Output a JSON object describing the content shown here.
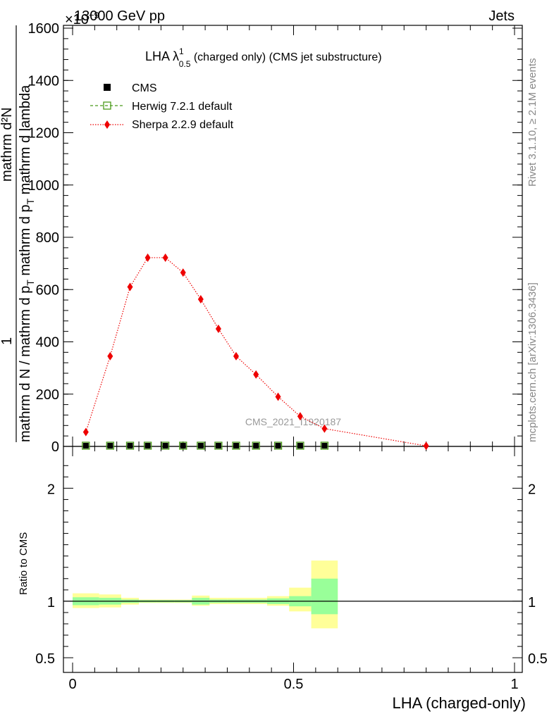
{
  "header": {
    "energy": "13000 GeV pp",
    "process": "Jets",
    "exponent": "×10",
    "exponent_power": "−9"
  },
  "side_labels": {
    "rivet": "Rivet 3.1.10, ≥ 2.1M events",
    "mcplots": "mcplots.cern.ch [arXiv:1306.3436]"
  },
  "main_title": {
    "prefix": "LHA λ",
    "superscript": "1",
    "subscript": "0.5",
    "suffix": " (charged only) (CMS jet substructure)"
  },
  "watermark": "CMS_2021_I1920187",
  "ylabel": {
    "numerator": "1",
    "line1": "mathrm d N / mathrm d p",
    "line1_sub": "T",
    "line1_suffix": " mathrm d p",
    "line1_sub2": "T",
    "line1_tail": " mathrm d lambda",
    "denominator_main": "mathrm d²N",
    "denominator_tail": "mathrm d N"
  },
  "ratio_ylabel": "Ratio to CMS",
  "xlabel": "LHA (charged-only)",
  "legend": [
    {
      "name": "CMS",
      "color": "#000000",
      "marker": "square-filled"
    },
    {
      "name": "Herwig 7.2.1 default",
      "color": "#4a9a1a",
      "marker": "square-open"
    },
    {
      "name": "Sherpa 2.2.9 default",
      "color": "#ee0000",
      "marker": "diamond"
    }
  ],
  "chart_data": {
    "type": "line",
    "xlim": [
      0,
      1
    ],
    "ylim": [
      0,
      1600
    ],
    "x_ticks": [
      "0",
      "0.5",
      "1"
    ],
    "y_ticks": [
      "0",
      "200",
      "400",
      "600",
      "800",
      "1000",
      "1200",
      "1400",
      "1600"
    ],
    "x_edges": [
      0.0,
      0.06,
      0.11,
      0.15,
      0.19,
      0.23,
      0.27,
      0.31,
      0.35,
      0.39,
      0.44,
      0.49,
      0.54,
      0.6,
      1.0
    ],
    "series": [
      {
        "name": "CMS",
        "x": [
          0.03,
          0.085,
          0.13,
          0.17,
          0.21,
          0.25,
          0.29,
          0.33,
          0.37,
          0.415,
          0.465,
          0.515,
          0.57
        ],
        "values": [
          0,
          0,
          0,
          0,
          0,
          0,
          0,
          0,
          0,
          0,
          0,
          0,
          0
        ]
      },
      {
        "name": "Herwig 7.2.1 default",
        "x": [
          0.03,
          0.085,
          0.13,
          0.17,
          0.21,
          0.25,
          0.29,
          0.33,
          0.37,
          0.415,
          0.465,
          0.515,
          0.57
        ],
        "values": [
          0,
          0,
          0,
          0,
          0,
          0,
          0,
          0,
          0,
          0,
          0,
          0,
          0
        ]
      },
      {
        "name": "Sherpa 2.2.9 default",
        "x": [
          0.03,
          0.085,
          0.13,
          0.17,
          0.21,
          0.25,
          0.29,
          0.33,
          0.37,
          0.415,
          0.465,
          0.515,
          0.57,
          0.8
        ],
        "values": [
          55,
          345,
          610,
          722,
          722,
          665,
          563,
          450,
          345,
          275,
          190,
          115,
          68,
          2
        ]
      }
    ],
    "ratio": {
      "ylim": [
        0.37,
        2.37
      ],
      "y_ticks": [
        "0.5",
        "1",
        "2"
      ],
      "reference": 1,
      "band_inner_low": [
        0.965,
        0.97,
        0.985,
        0.99,
        0.99,
        0.99,
        0.97,
        0.985,
        0.985,
        0.985,
        0.975,
        0.955,
        0.885
      ],
      "band_inner_high": [
        1.035,
        1.03,
        1.015,
        1.01,
        1.01,
        1.01,
        1.03,
        1.015,
        1.015,
        1.015,
        1.025,
        1.045,
        1.2
      ],
      "band_outer_low": [
        0.94,
        0.945,
        0.97,
        0.985,
        0.985,
        0.985,
        0.96,
        0.975,
        0.975,
        0.975,
        0.96,
        0.91,
        0.76
      ],
      "band_outer_high": [
        1.07,
        1.06,
        1.03,
        1.015,
        1.015,
        1.015,
        1.05,
        1.03,
        1.03,
        1.03,
        1.045,
        1.12,
        1.36
      ]
    }
  }
}
